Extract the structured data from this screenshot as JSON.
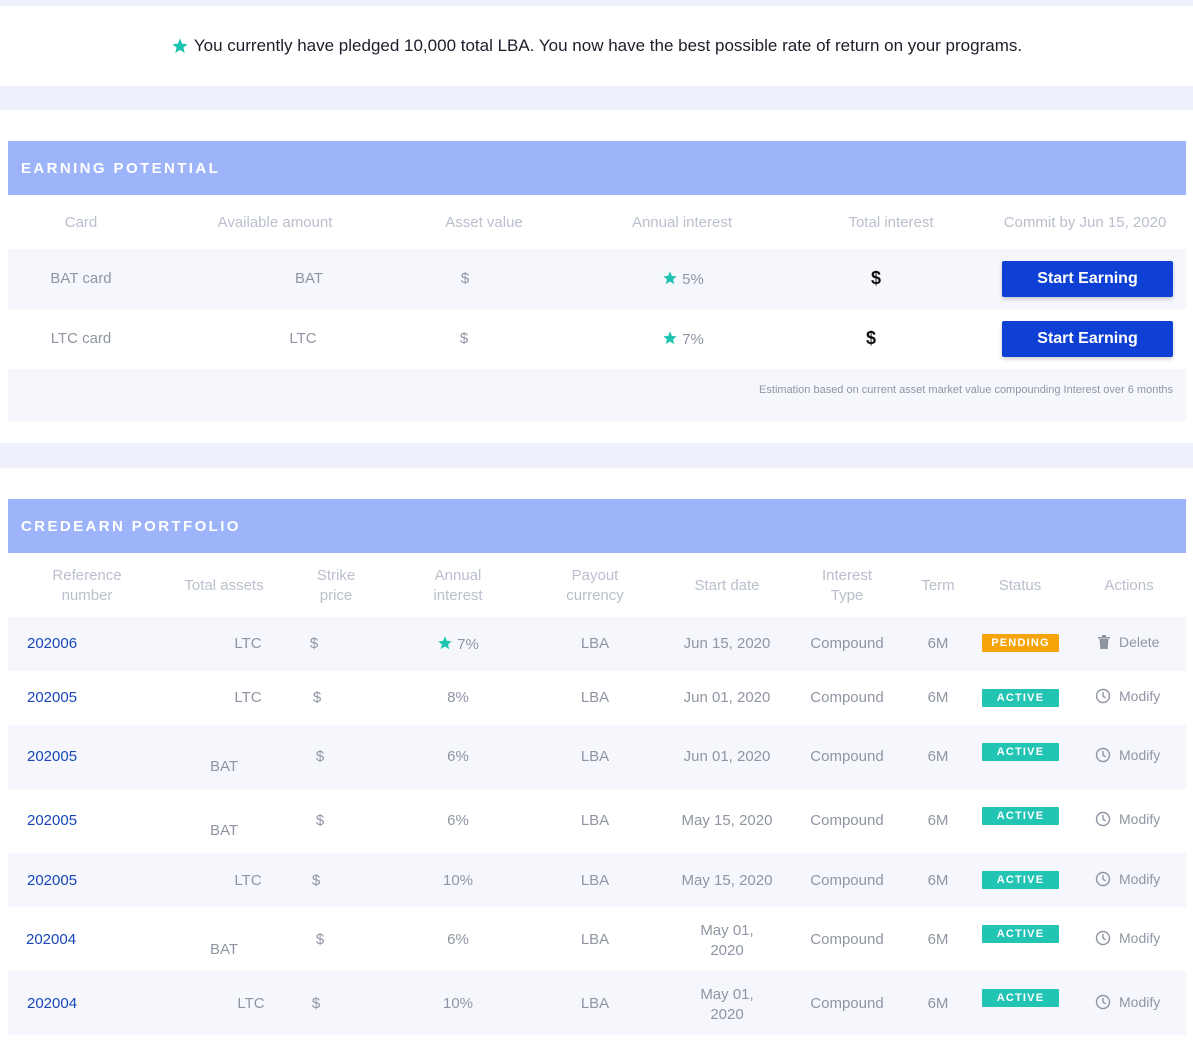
{
  "banner": {
    "text": "You currently have pledged 10,000 total LBA. You now have the best possible rate of return on your programs.",
    "icon": "star-icon"
  },
  "earning": {
    "title": "EARNING POTENTIAL",
    "headers": {
      "card": "Card",
      "available": "Available amount",
      "asset_value": "Asset value",
      "annual_interest": "Annual interest",
      "total_interest": "Total interest",
      "commit": "Commit by Jun 15, 2020"
    },
    "rows": [
      {
        "card": "BAT card",
        "available": "BAT",
        "asset_value": "$",
        "interest": "5%",
        "total": "$",
        "button": "Start Earning"
      },
      {
        "card": "LTC card",
        "available": "LTC",
        "asset_value": "$",
        "interest": "7%",
        "total": "$",
        "button": "Start Earning"
      }
    ],
    "note": "Estimation based on current asset market value compounding Interest over 6 months"
  },
  "portfolio": {
    "title": "CREDEARN PORTFOLIO",
    "headers": {
      "ref_1": "Reference",
      "ref_2": "number",
      "total_assets": "Total assets",
      "strike_1": "Strike",
      "strike_2": "price",
      "annual_1": "Annual",
      "annual_2": "interest",
      "payout_1": "Payout",
      "payout_2": "currency",
      "start_date": "Start date",
      "type_1": "Interest",
      "type_2": "Type",
      "term": "Term",
      "status": "Status",
      "actions": "Actions"
    },
    "rows": [
      {
        "ref": "202006",
        "assets": "LTC",
        "strike": "$",
        "interest": "7%",
        "payout": "LBA",
        "date_1": "Jun 15, 2020",
        "date_2": "",
        "type": "Compound",
        "term": "6M",
        "status": "PENDING",
        "action": "Delete"
      },
      {
        "ref": "202005",
        "assets": "LTC",
        "strike": "$",
        "interest": "8%",
        "payout": "LBA",
        "date_1": "Jun 01, 2020",
        "date_2": "",
        "type": "Compound",
        "term": "6M",
        "status": "ACTIVE",
        "action": "Modify"
      },
      {
        "ref": "202005",
        "assets": "BAT",
        "strike": "$",
        "interest": "6%",
        "payout": "LBA",
        "date_1": "Jun 01, 2020",
        "date_2": "",
        "type": "Compound",
        "term": "6M",
        "status": "ACTIVE",
        "action": "Modify"
      },
      {
        "ref": "202005",
        "assets": "BAT",
        "strike": "$",
        "interest": "6%",
        "payout": "LBA",
        "date_1": "May 15, 2020",
        "date_2": "",
        "type": "Compound",
        "term": "6M",
        "status": "ACTIVE",
        "action": "Modify"
      },
      {
        "ref": "202005",
        "assets": "LTC",
        "strike": "$",
        "interest": "10%",
        "payout": "LBA",
        "date_1": "May 15, 2020",
        "date_2": "",
        "type": "Compound",
        "term": "6M",
        "status": "ACTIVE",
        "action": "Modify"
      },
      {
        "ref": "202004",
        "assets": "BAT",
        "strike": "$",
        "interest": "6%",
        "payout": "LBA",
        "date_1": "May 01,",
        "date_2": "2020",
        "type": "Compound",
        "term": "6M",
        "status": "ACTIVE",
        "action": "Modify"
      },
      {
        "ref": "202004",
        "assets": "LTC",
        "strike": "$",
        "interest": "10%",
        "payout": "LBA",
        "date_1": "May 01,",
        "date_2": "2020",
        "type": "Compound",
        "term": "6M",
        "status": "ACTIVE",
        "action": "Modify"
      }
    ]
  },
  "colors": {
    "accent": "#0f40d6",
    "header_bg": "#9db4fb",
    "star": "#1fc4b0",
    "pending": "#f5a509",
    "active": "#22c4b3",
    "ref_link": "#1846b8"
  }
}
